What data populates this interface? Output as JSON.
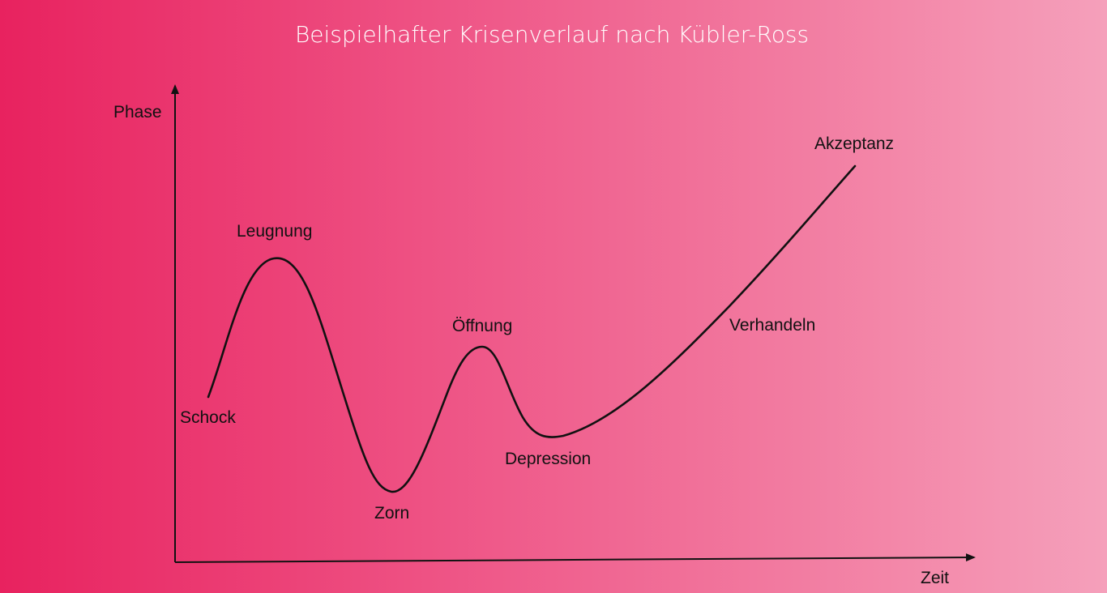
{
  "title": "Beispielhafter Krisenverlauf nach Kübler-Ross",
  "axes": {
    "y_label": "Phase",
    "x_label": "Zeit"
  },
  "phases": [
    {
      "id": "schock",
      "label": "Schock"
    },
    {
      "id": "leugnung",
      "label": "Leugnung"
    },
    {
      "id": "zorn",
      "label": "Zorn"
    },
    {
      "id": "oeffnung",
      "label": "Öffnung"
    },
    {
      "id": "depression",
      "label": "Depression"
    },
    {
      "id": "verhandeln",
      "label": "Verhandeln"
    },
    {
      "id": "akzeptanz",
      "label": "Akzeptanz"
    }
  ],
  "colors": {
    "gradient_start": "#e8225f",
    "gradient_end": "#f5a0bb",
    "line": "#111111",
    "title": "#ffffff"
  }
}
